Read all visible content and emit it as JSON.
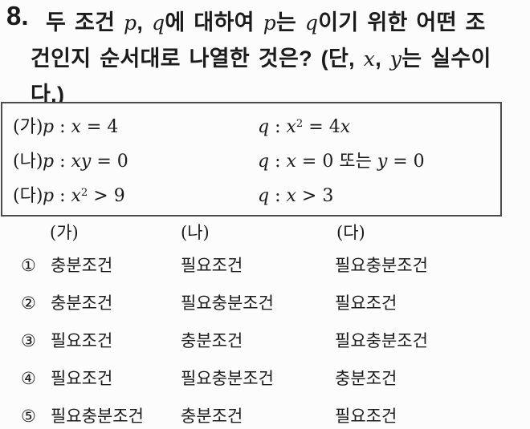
{
  "question": {
    "number": "8.",
    "lines": [
      [
        {
          "t": "두 조건 "
        },
        {
          "t": "p",
          "m": 1
        },
        {
          "t": ", "
        },
        {
          "t": "q",
          "m": 1
        },
        {
          "t": "에 대하여 "
        },
        {
          "t": "p",
          "m": 1
        },
        {
          "t": "는 "
        },
        {
          "t": "q",
          "m": 1
        },
        {
          "t": "이기 위한 어떤 조"
        }
      ],
      [
        {
          "t": "건인지 순서대로 나열한 것은? (단, "
        },
        {
          "t": "x",
          "m": 1
        },
        {
          "t": ", "
        },
        {
          "t": "y",
          "m": 1
        },
        {
          "t": "는 실수이"
        }
      ],
      [
        {
          "t": "다.)"
        }
      ]
    ]
  },
  "box": {
    "rows": [
      {
        "label": "(가)",
        "p": [
          {
            "t": "p",
            "m": 1
          },
          {
            "t": " : "
          },
          {
            "t": "x",
            "m": 1
          },
          {
            "t": " = 4"
          }
        ],
        "q": [
          {
            "t": "q",
            "m": 1
          },
          {
            "t": " : "
          },
          {
            "t": "x",
            "m": 1
          },
          {
            "t": "2",
            "sup": 1
          },
          {
            "t": " = 4"
          },
          {
            "t": "x",
            "m": 1
          }
        ]
      },
      {
        "label": "(나)",
        "p": [
          {
            "t": "p",
            "m": 1
          },
          {
            "t": " : "
          },
          {
            "t": "xy",
            "m": 1
          },
          {
            "t": " = 0"
          }
        ],
        "q": [
          {
            "t": "q",
            "m": 1
          },
          {
            "t": " : "
          },
          {
            "t": "x",
            "m": 1
          },
          {
            "t": " = 0  또는  "
          },
          {
            "t": "y",
            "m": 1
          },
          {
            "t": " = 0"
          }
        ]
      },
      {
        "label": "(다)",
        "p": [
          {
            "t": "p",
            "m": 1
          },
          {
            "t": " : "
          },
          {
            "t": "x",
            "m": 1
          },
          {
            "t": "2",
            "sup": 1
          },
          {
            "t": " > 9"
          }
        ],
        "q": [
          {
            "t": "q",
            "m": 1
          },
          {
            "t": " : "
          },
          {
            "t": "x",
            "m": 1
          },
          {
            "t": " > 3"
          }
        ]
      }
    ]
  },
  "answers": {
    "headers": [
      "(가)",
      "(나)",
      "(다)"
    ],
    "choices": [
      {
        "num": "①",
        "cols": [
          "충분조건",
          "필요조건",
          "필요충분조건"
        ]
      },
      {
        "num": "②",
        "cols": [
          "충분조건",
          "필요충분조건",
          "필요조건"
        ]
      },
      {
        "num": "③",
        "cols": [
          "필요조건",
          "충분조건",
          "필요충분조건"
        ]
      },
      {
        "num": "④",
        "cols": [
          "필요조건",
          "필요충분조건",
          "충분조건"
        ]
      },
      {
        "num": "⑤",
        "cols": [
          "필요충분조건",
          "충분조건",
          "필요조건"
        ]
      }
    ]
  },
  "colors": {
    "text": "#1b1b1b",
    "box_border": "#4c4c4c",
    "background": "#fcfcfc"
  }
}
